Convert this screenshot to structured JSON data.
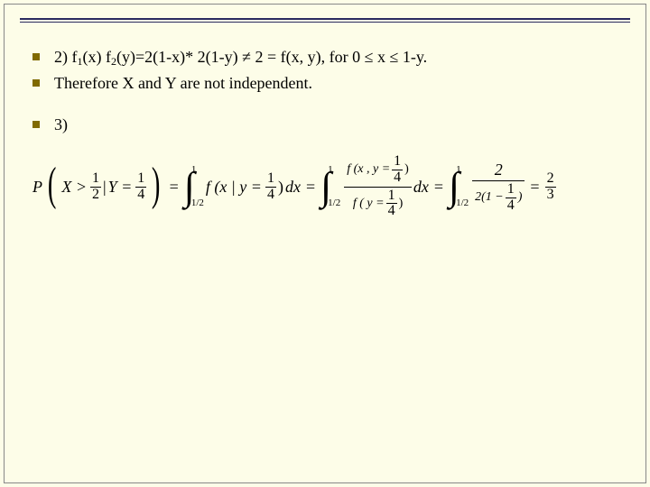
{
  "bullets": {
    "b1_pre": "2) f",
    "b1_s1": "1",
    "b1_mid1": "(x) f",
    "b1_s2": "2",
    "b1_mid2": "(y)=2(1-x)* 2(1-y) ≠ 2 = f(x, y), for 0 ≤ x ≤ 1-y.",
    "b2": "Therefore X and Y are not independent.",
    "b3": "3)"
  },
  "eq": {
    "P": "P",
    "Xgt": "X >",
    "half_n": "1",
    "half_d": "2",
    "bar": " | ",
    "Yeq": "Y =",
    "q_n": "1",
    "q_d": "4",
    "eq1": "=",
    "int_hi": "1",
    "int_lo": "1/2",
    "fx": "f (x | y =",
    "close": ")",
    "dx": "dx",
    "num_fxy": "f (x , y =",
    "den_fy": "f ( y =",
    "two": "2",
    "den2a": "2(1 −",
    "den2b": ")",
    "res_n": "2",
    "res_d": "3"
  }
}
